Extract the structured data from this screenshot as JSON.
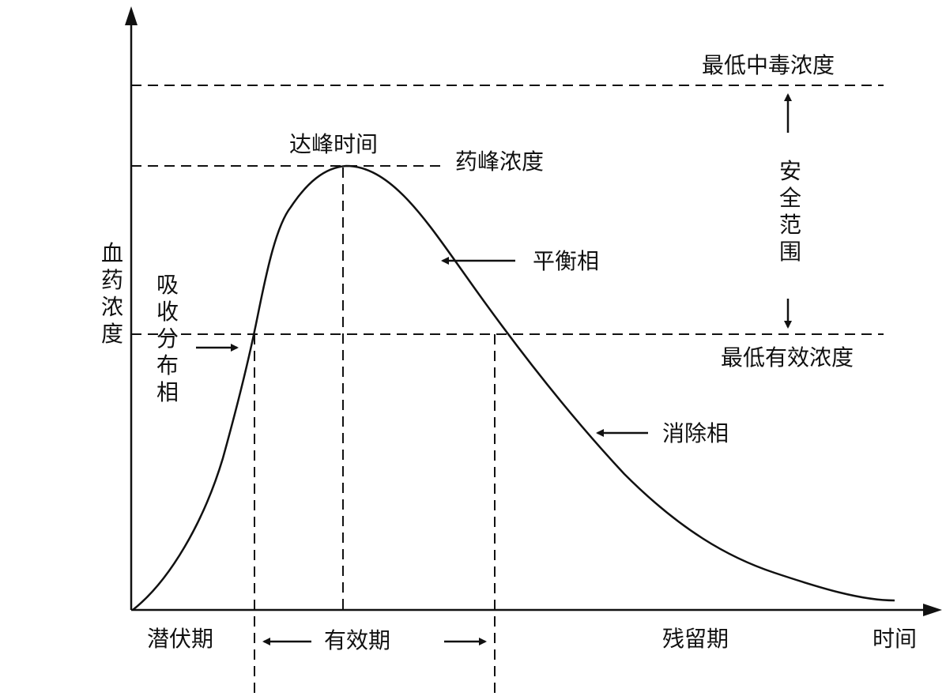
{
  "diagram": {
    "y_axis_label": "血药浓度",
    "x_axis_label": "时间",
    "levels": {
      "min_toxic": "最低中毒浓度",
      "peak": "药峰浓度",
      "min_effective": "最低有效浓度"
    },
    "peak_time_label": "达峰时间",
    "safe_range_label": "安全范围",
    "phases": {
      "absorption": "吸收分布相",
      "equilibrium": "平衡相",
      "elimination": "消除相"
    },
    "periods": {
      "latent": "潜伏期",
      "effective": "有效期",
      "residual": "残留期"
    }
  }
}
